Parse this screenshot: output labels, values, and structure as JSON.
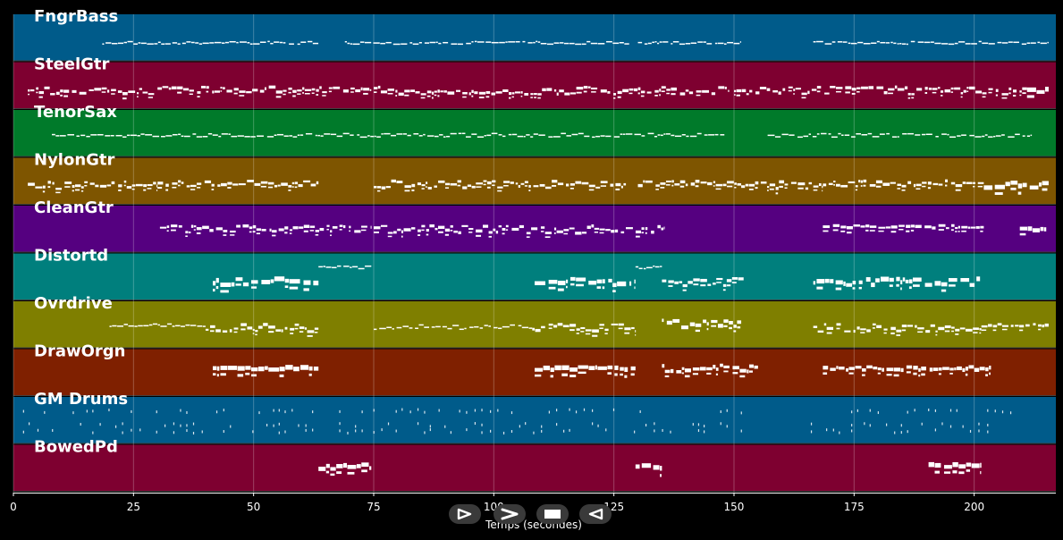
{
  "chart_data": {
    "type": "piano-roll",
    "title": "",
    "xlabel": "Temps (secondes)",
    "ylabel": "",
    "xlim": [
      0,
      217
    ],
    "xticks": [
      0,
      25,
      50,
      75,
      100,
      125,
      150,
      175,
      200
    ],
    "grid": true,
    "tracks": [
      {
        "name": "FngrBass",
        "color": "#005b8a",
        "segments": [
          [
            18.5,
            63.5,
            0.62,
            0.06,
            1
          ],
          [
            69,
            128.5,
            0.62,
            0.06,
            1
          ],
          [
            130,
            151.5,
            0.62,
            0.06,
            1
          ],
          [
            166.5,
            215.5,
            0.62,
            0.06,
            1
          ]
        ]
      },
      {
        "name": "SteelGtr",
        "color": "#7e0030",
        "segments": [
          [
            3,
            30,
            0.62,
            0.16,
            2
          ],
          [
            30,
            74.5,
            0.6,
            0.12,
            2
          ],
          [
            75,
            149,
            0.62,
            0.16,
            2
          ],
          [
            150,
            211,
            0.62,
            0.16,
            2
          ],
          [
            211,
            215.5,
            0.62,
            0.1,
            4
          ]
        ]
      },
      {
        "name": "TenorSax",
        "color": "#007a2a",
        "segments": [
          [
            8,
            148,
            0.55,
            0.08,
            1
          ],
          [
            157,
            212,
            0.55,
            0.08,
            1
          ]
        ]
      },
      {
        "name": "NylonGtr",
        "color": "#7e5500",
        "segments": [
          [
            3,
            30,
            0.6,
            0.18,
            2
          ],
          [
            30,
            63.5,
            0.56,
            0.12,
            2
          ],
          [
            75,
            127.5,
            0.58,
            0.16,
            2
          ],
          [
            130,
            151.5,
            0.56,
            0.1,
            2
          ],
          [
            151.5,
            168.5,
            0.6,
            0.16,
            2
          ],
          [
            168.5,
            202,
            0.56,
            0.12,
            2
          ],
          [
            202,
            215.5,
            0.6,
            0.14,
            4
          ]
        ]
      },
      {
        "name": "CleanGtr",
        "color": "#550080",
        "segments": [
          [
            30.5,
            74.5,
            0.52,
            0.16,
            2
          ],
          [
            75,
            135.5,
            0.52,
            0.16,
            2
          ],
          [
            168.5,
            202,
            0.46,
            0.06,
            2
          ],
          [
            209.5,
            215,
            0.52,
            0.06,
            4
          ]
        ]
      },
      {
        "name": "Distortd",
        "color": "#007f7d",
        "segments": [
          [
            63.5,
            74.5,
            0.3,
            0.06,
            1
          ],
          [
            41.5,
            63.5,
            0.62,
            0.14,
            4
          ],
          [
            108.5,
            129.5,
            0.62,
            0.14,
            4
          ],
          [
            129.5,
            135,
            0.3,
            0.06,
            1
          ],
          [
            135,
            152,
            0.62,
            0.16,
            2
          ],
          [
            166.5,
            201.5,
            0.62,
            0.14,
            4
          ]
        ]
      },
      {
        "name": "Ovrdrive",
        "color": "#7f7f00",
        "segments": [
          [
            20,
            40,
            0.52,
            0.06,
            1
          ],
          [
            40,
            63.5,
            0.58,
            0.16,
            2
          ],
          [
            75,
            108,
            0.56,
            0.1,
            1
          ],
          [
            108,
            129.5,
            0.58,
            0.16,
            2
          ],
          [
            135,
            151.5,
            0.5,
            0.18,
            3
          ],
          [
            166.5,
            201.5,
            0.58,
            0.16,
            2
          ],
          [
            201.5,
            215.5,
            0.52,
            0.06,
            2
          ]
        ]
      },
      {
        "name": "DrawOrgn",
        "color": "#7f2000",
        "segments": [
          [
            41.5,
            63.5,
            0.42,
            0.06,
            4
          ],
          [
            108.5,
            129.5,
            0.42,
            0.06,
            4
          ],
          [
            135,
            155,
            0.42,
            0.16,
            3
          ],
          [
            168.5,
            203.5,
            0.42,
            0.08,
            3
          ]
        ]
      },
      {
        "name": "GM Drums",
        "color": "#005b8a",
        "segments": [
          [
            2,
            64,
            0.5,
            0.2,
            1
          ],
          [
            66,
            126,
            0.5,
            0.2,
            1
          ],
          [
            128,
            152,
            0.5,
            0.2,
            1
          ],
          [
            166,
            210,
            0.5,
            0.2,
            1
          ]
        ]
      },
      {
        "name": "BowedPd",
        "color": "#7e0030",
        "segments": [
          [
            63.5,
            74.5,
            0.48,
            0.1,
            4
          ],
          [
            129.5,
            135,
            0.48,
            0.1,
            4
          ],
          [
            190.5,
            201.5,
            0.46,
            0.06,
            4
          ]
        ]
      }
    ]
  },
  "controls": {
    "play_icon": "play-icon",
    "next_icon": "next-icon",
    "stop_icon": "stop-icon",
    "prev_icon": "previous-icon"
  }
}
